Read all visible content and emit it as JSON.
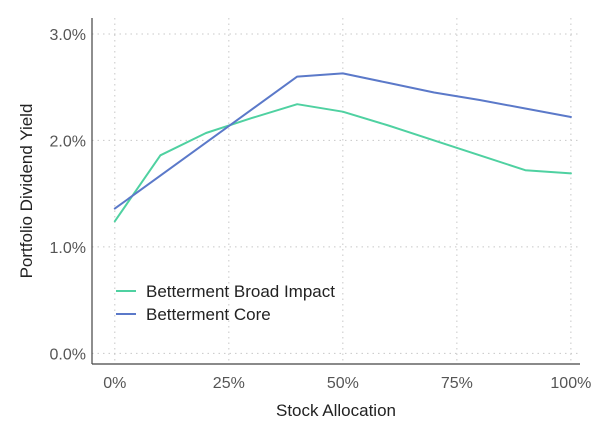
{
  "chart_data": {
    "type": "line",
    "xlabel": "Stock Allocation",
    "ylabel": "Portfolio Dividend Yield",
    "xlim": [
      -5,
      102
    ],
    "ylim": [
      -0.1,
      3.15
    ],
    "x_ticks": [
      0,
      25,
      50,
      75,
      100
    ],
    "x_tick_labels": [
      "0%",
      "25%",
      "50%",
      "75%",
      "100%"
    ],
    "y_ticks": [
      0,
      1,
      2,
      3
    ],
    "y_tick_labels": [
      "0.0%",
      "1.0%",
      "2.0%",
      "3.0%"
    ],
    "grid": true,
    "legend_position": "bottom-left",
    "series": [
      {
        "name": "Betterment Broad Impact",
        "color": "#4fd1a1",
        "x": [
          0,
          10,
          20,
          30,
          40,
          50,
          60,
          70,
          80,
          90,
          100
        ],
        "y": [
          1.24,
          1.86,
          2.07,
          2.21,
          2.34,
          2.27,
          2.14,
          2.0,
          1.86,
          1.72,
          1.69
        ]
      },
      {
        "name": "Betterment Core",
        "color": "#5b79c9",
        "x": [
          0,
          40,
          50,
          60,
          70,
          80,
          90,
          100
        ],
        "y": [
          1.36,
          2.6,
          2.63,
          2.54,
          2.45,
          2.38,
          2.3,
          2.22
        ]
      }
    ]
  }
}
